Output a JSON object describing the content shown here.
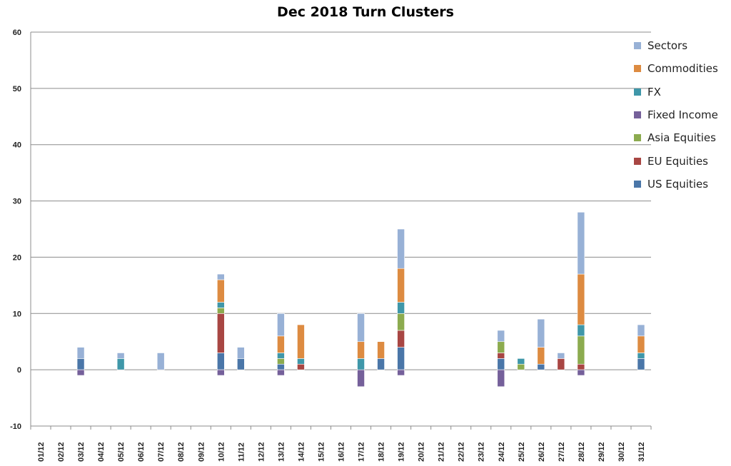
{
  "chart_data": {
    "type": "bar",
    "stacked": true,
    "title": "Dec 2018 Turn Clusters",
    "xlabel": "",
    "ylabel": "",
    "ylim": [
      -10,
      60
    ],
    "yticks": [
      -10,
      0,
      10,
      20,
      30,
      40,
      50,
      60
    ],
    "grid": true,
    "legend_position": "right",
    "categories": [
      "01/12",
      "02/12",
      "03/12",
      "04/12",
      "05/12",
      "06/12",
      "07/12",
      "08/12",
      "09/12",
      "10/12",
      "11/12",
      "12/12",
      "13/12",
      "14/12",
      "15/12",
      "16/12",
      "17/12",
      "18/12",
      "19/12",
      "20/12",
      "21/12",
      "22/12",
      "23/12",
      "24/12",
      "25/12",
      "26/12",
      "27/12",
      "28/12",
      "29/12",
      "30/12",
      "31/12"
    ],
    "series": [
      {
        "name": "US Equities",
        "color": "#4a76a8",
        "values": [
          0,
          0,
          2,
          0,
          0,
          0,
          0,
          0,
          0,
          3,
          2,
          0,
          1,
          0,
          0,
          0,
          0,
          2,
          4,
          0,
          0,
          0,
          0,
          2,
          0,
          1,
          0,
          0,
          0,
          0,
          2
        ]
      },
      {
        "name": "EU Equities",
        "color": "#a84643",
        "values": [
          0,
          0,
          0,
          0,
          0,
          0,
          0,
          0,
          0,
          7,
          0,
          0,
          0,
          1,
          0,
          0,
          0,
          0,
          3,
          0,
          0,
          0,
          0,
          1,
          0,
          0,
          2,
          1,
          0,
          0,
          0
        ]
      },
      {
        "name": "Asia Equities",
        "color": "#8cab4f",
        "values": [
          0,
          0,
          0,
          0,
          0,
          0,
          0,
          0,
          0,
          1,
          0,
          0,
          1,
          0,
          0,
          0,
          0,
          0,
          3,
          0,
          0,
          0,
          0,
          2,
          1,
          0,
          0,
          5,
          0,
          0,
          0
        ]
      },
      {
        "name": "Fixed Income",
        "color": "#75609a",
        "values": [
          0,
          0,
          -1,
          0,
          0,
          0,
          0,
          0,
          0,
          -1,
          0,
          0,
          -1,
          0,
          0,
          0,
          -3,
          0,
          -1,
          0,
          0,
          0,
          0,
          -3,
          0,
          0,
          0,
          -1,
          0,
          0,
          0
        ]
      },
      {
        "name": "FX",
        "color": "#3f97a9",
        "values": [
          0,
          0,
          0,
          0,
          2,
          0,
          0,
          0,
          0,
          1,
          0,
          0,
          1,
          1,
          0,
          0,
          2,
          0,
          2,
          0,
          0,
          0,
          0,
          0,
          1,
          0,
          0,
          2,
          0,
          0,
          1
        ]
      },
      {
        "name": "Commodities",
        "color": "#dd8b41",
        "values": [
          0,
          0,
          0,
          0,
          0,
          0,
          0,
          0,
          0,
          4,
          0,
          0,
          3,
          6,
          0,
          0,
          3,
          3,
          6,
          0,
          0,
          0,
          0,
          0,
          0,
          3,
          0,
          9,
          0,
          0,
          3
        ]
      },
      {
        "name": "Sectors",
        "color": "#98b1d6",
        "values": [
          0,
          0,
          2,
          0,
          1,
          0,
          3,
          0,
          0,
          1,
          2,
          0,
          4,
          0,
          0,
          0,
          5,
          0,
          7,
          0,
          0,
          0,
          0,
          2,
          0,
          5,
          1,
          11,
          0,
          0,
          2
        ]
      }
    ]
  }
}
